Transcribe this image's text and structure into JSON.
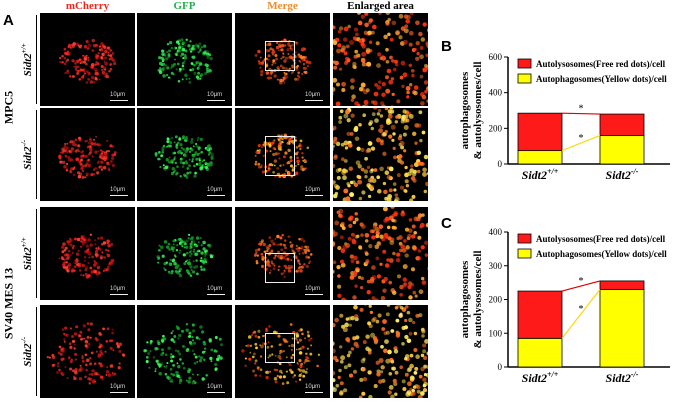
{
  "panel_a": {
    "letter": "A",
    "columns": [
      "mCherry",
      "GFP",
      "Merge",
      "Enlarged area"
    ],
    "column_colors": [
      "#e8261c",
      "#22b14c",
      "#f08c2a",
      "#000000"
    ],
    "groups": [
      {
        "name": "MPC5",
        "rows": [
          "Sidt2+/+",
          "Sidt2-/-"
        ]
      },
      {
        "name": "SV40 MES 13",
        "rows": [
          "Sidt2+/+",
          "Sidt2-/-"
        ]
      }
    ],
    "scale_label": "10μm"
  },
  "panel_b": {
    "letter": "B",
    "legend": [
      "Autolysosomes(Free red dots)/cell",
      "Autophagosomes(Yellow dots)/cell"
    ]
  },
  "panel_c": {
    "letter": "C",
    "legend": [
      "Autolysosomes(Free red dots)/cell",
      "Autophagosomes(Yellow dots)/cell"
    ]
  },
  "chart_data": [
    {
      "type": "bar",
      "stacked": true,
      "categories": [
        "Sidt2+/+",
        "Sidt2-/-"
      ],
      "ylabel": "autophagosomes & autolysosomes/cell",
      "ylim": [
        0,
        600
      ],
      "yticks": [
        0,
        200,
        400,
        600
      ],
      "series": [
        {
          "name": "Autophagosomes(Yellow dots)/cell",
          "color": "#ffff00",
          "values": [
            75,
            160
          ]
        },
        {
          "name": "Autolysosomes(Free red dots)/cell",
          "color": "#ff1a1a",
          "values": [
            210,
            120
          ]
        }
      ],
      "annotations": [
        "*",
        "*"
      ],
      "legend_position": "top-right"
    },
    {
      "type": "bar",
      "stacked": true,
      "categories": [
        "Sidt2+/+",
        "Sidt2-/-"
      ],
      "ylabel": "autophagosomes & autolysosomes/cell",
      "ylim": [
        0,
        400
      ],
      "yticks": [
        0,
        100,
        200,
        300,
        400
      ],
      "series": [
        {
          "name": "Autophagosomes(Yellow dots)/cell",
          "color": "#ffff00",
          "values": [
            85,
            230
          ]
        },
        {
          "name": "Autolysosomes(Free red dots)/cell",
          "color": "#ff1a1a",
          "values": [
            140,
            25
          ]
        }
      ],
      "annotations": [
        "*",
        "*"
      ],
      "legend_position": "top-right"
    }
  ]
}
